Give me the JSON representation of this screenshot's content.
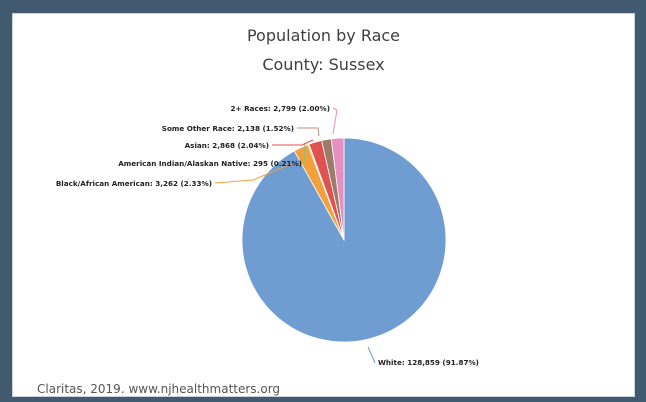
{
  "chart_data": {
    "type": "pie",
    "title": "Population by Race",
    "subtitle": "County: Sussex",
    "slices": [
      {
        "label": "White",
        "value": 128859,
        "percent": "91.87%",
        "display": "White: 128,859 (91.87%)",
        "color": "#6f9dd2",
        "line_color": "#6f9dd2"
      },
      {
        "label": "Black/African American",
        "value": 3262,
        "percent": "2.33%",
        "display": "Black/African American: 3,262 (2.33%)",
        "color": "#f3a03f",
        "line_color": "#f3a03f"
      },
      {
        "label": "American Indian/Alaskan Native",
        "value": 295,
        "percent": "0.21%",
        "display": "American Indian/Alaskan Native: 295 (0.21%)",
        "color": "#8bbf6e",
        "line_color": "#8bbf6e"
      },
      {
        "label": "Asian",
        "value": 2868,
        "percent": "2.04%",
        "display": "Asian: 2,868 (2.04%)",
        "color": "#e0524f",
        "line_color": "#e0524f"
      },
      {
        "label": "Some Other Race",
        "value": 2138,
        "percent": "1.52%",
        "display": "Some Other Race: 2,138 (1.52%)",
        "color": "#9d7b6a",
        "line_color": "#c98a82"
      },
      {
        "label": "2+ Races",
        "value": 2799,
        "percent": "2.00%",
        "display": "2+ Races: 2,799 (2.00%)",
        "color": "#e68fc0",
        "line_color": "#e68fc0"
      }
    ]
  },
  "source": "Claritas, 2019. www.njhealthmatters.org"
}
